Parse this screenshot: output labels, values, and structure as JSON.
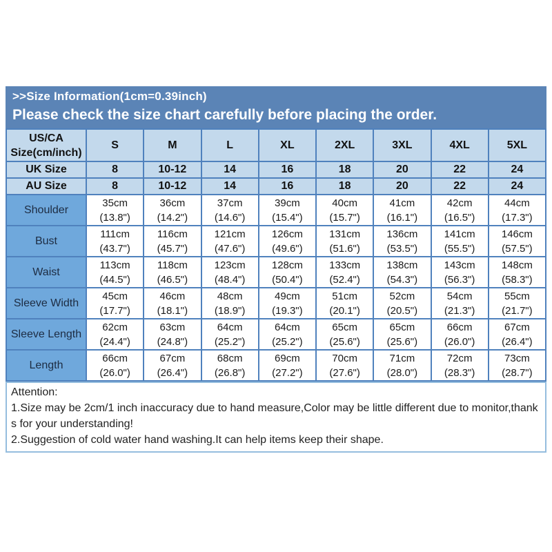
{
  "banner": {
    "title": ">>Size Information(1cm=0.39inch)",
    "subtitle": "Please check the size chart carefully before placing the order."
  },
  "table": {
    "corner_header": "US/CA\nSize(cm/inch)",
    "size_columns": [
      "S",
      "M",
      "L",
      "XL",
      "2XL",
      "3XL",
      "4XL",
      "5XL"
    ],
    "size_rows": [
      {
        "label": "UK Size",
        "values": [
          "8",
          "10-12",
          "14",
          "16",
          "18",
          "20",
          "22",
          "24"
        ]
      },
      {
        "label": "AU Size",
        "values": [
          "8",
          "10-12",
          "14",
          "16",
          "18",
          "20",
          "22",
          "24"
        ]
      }
    ],
    "measure_rows": [
      {
        "label": "Shoulder",
        "cells": [
          {
            "cm": "35cm",
            "inch": "(13.8\")"
          },
          {
            "cm": "36cm",
            "inch": "(14.2\")"
          },
          {
            "cm": "37cm",
            "inch": "(14.6\")"
          },
          {
            "cm": "39cm",
            "inch": "(15.4\")"
          },
          {
            "cm": "40cm",
            "inch": "(15.7\")"
          },
          {
            "cm": "41cm",
            "inch": "(16.1\")"
          },
          {
            "cm": "42cm",
            "inch": "(16.5\")"
          },
          {
            "cm": "44cm",
            "inch": "(17.3\")"
          }
        ]
      },
      {
        "label": "Bust",
        "cells": [
          {
            "cm": "111cm",
            "inch": "(43.7\")"
          },
          {
            "cm": "116cm",
            "inch": "(45.7\")"
          },
          {
            "cm": "121cm",
            "inch": "(47.6\")"
          },
          {
            "cm": "126cm",
            "inch": "(49.6\")"
          },
          {
            "cm": "131cm",
            "inch": "(51.6\")"
          },
          {
            "cm": "136cm",
            "inch": "(53.5\")"
          },
          {
            "cm": "141cm",
            "inch": "(55.5\")"
          },
          {
            "cm": "146cm",
            "inch": "(57.5\")"
          }
        ]
      },
      {
        "label": "Waist",
        "cells": [
          {
            "cm": "113cm",
            "inch": "(44.5\")"
          },
          {
            "cm": "118cm",
            "inch": "(46.5\")"
          },
          {
            "cm": "123cm",
            "inch": "(48.4\")"
          },
          {
            "cm": "128cm",
            "inch": "(50.4\")"
          },
          {
            "cm": "133cm",
            "inch": "(52.4\")"
          },
          {
            "cm": "138cm",
            "inch": "(54.3\")"
          },
          {
            "cm": "143cm",
            "inch": "(56.3\")"
          },
          {
            "cm": "148cm",
            "inch": "(58.3\")"
          }
        ]
      },
      {
        "label": "Sleeve Width",
        "cells": [
          {
            "cm": "45cm",
            "inch": "(17.7\")"
          },
          {
            "cm": "46cm",
            "inch": "(18.1\")"
          },
          {
            "cm": "48cm",
            "inch": "(18.9\")"
          },
          {
            "cm": "49cm",
            "inch": "(19.3\")"
          },
          {
            "cm": "51cm",
            "inch": "(20.1\")"
          },
          {
            "cm": "52cm",
            "inch": "(20.5\")"
          },
          {
            "cm": "54cm",
            "inch": "(21.3\")"
          },
          {
            "cm": "55cm",
            "inch": "(21.7\")"
          }
        ]
      },
      {
        "label": "Sleeve Length",
        "cells": [
          {
            "cm": "62cm",
            "inch": "(24.4\")"
          },
          {
            "cm": "63cm",
            "inch": "(24.8\")"
          },
          {
            "cm": "64cm",
            "inch": "(25.2\")"
          },
          {
            "cm": "64cm",
            "inch": "(25.2\")"
          },
          {
            "cm": "65cm",
            "inch": "(25.6\")"
          },
          {
            "cm": "65cm",
            "inch": "(25.6\")"
          },
          {
            "cm": "66cm",
            "inch": "(26.0\")"
          },
          {
            "cm": "67cm",
            "inch": "(26.4\")"
          }
        ]
      },
      {
        "label": "Length",
        "cells": [
          {
            "cm": "66cm",
            "inch": "(26.0\")"
          },
          {
            "cm": "67cm",
            "inch": "(26.4\")"
          },
          {
            "cm": "68cm",
            "inch": "(26.8\")"
          },
          {
            "cm": "69cm",
            "inch": "(27.2\")"
          },
          {
            "cm": "70cm",
            "inch": "(27.6\")"
          },
          {
            "cm": "71cm",
            "inch": "(28.0\")"
          },
          {
            "cm": "72cm",
            "inch": "(28.3\")"
          },
          {
            "cm": "73cm",
            "inch": "(28.7\")"
          }
        ]
      }
    ]
  },
  "attention": {
    "heading": "Attention:",
    "notes": [
      "1.Size may be 2cm/1 inch inaccuracy due to hand measure,Color may be little different due to monitor,thanks for your understanding!",
      "2.Suggestion of cold water hand washing.It can help items keep their shape."
    ]
  },
  "colors": {
    "banner_bg": "#5b84b6",
    "banner_text": "#ffffff",
    "light_row_bg": "#c3d9ec",
    "label_cell_bg": "#6fa8dc",
    "grid_border": "#4f81bd",
    "attention_border": "#95bdde",
    "cell_text": "#1a1a1a"
  }
}
